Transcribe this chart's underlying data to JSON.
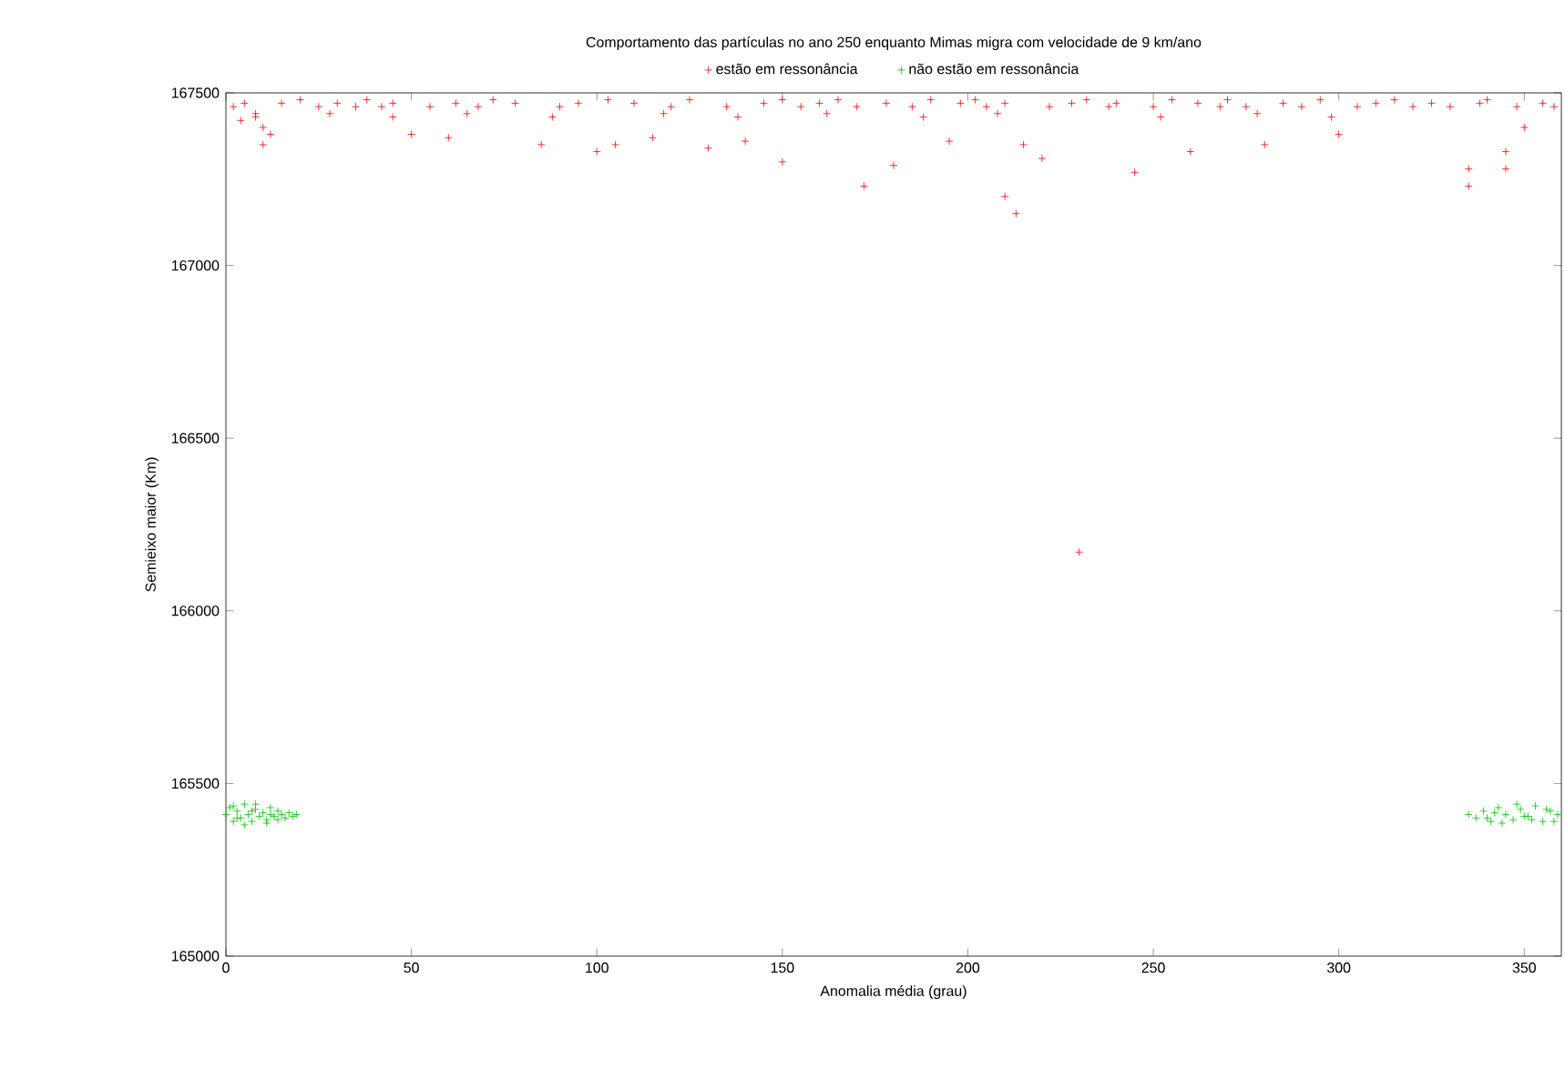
{
  "chart_data": {
    "type": "scatter",
    "title": "Comportamento das partículas no ano 250 enquanto Mimas migra com velocidade de 9 km/ano",
    "xlabel": "Anomalia média (grau)",
    "ylabel": "Semieixo maior (Km)",
    "xlim": [
      0,
      360
    ],
    "ylim": [
      165000,
      167500
    ],
    "xticks": [
      0,
      50,
      100,
      150,
      200,
      250,
      300,
      350
    ],
    "yticks": [
      165000,
      165500,
      166000,
      166500,
      167000,
      167500
    ],
    "marker": "cross",
    "legend": "top",
    "series": [
      {
        "name": "estão em ressonância",
        "color": "#ff0000",
        "x": [
          2,
          4,
          5,
          8,
          10,
          10,
          12,
          15,
          20,
          25,
          30,
          35,
          38,
          42,
          45,
          50,
          55,
          60,
          62,
          68,
          72,
          78,
          85,
          90,
          95,
          100,
          103,
          105,
          110,
          115,
          120,
          125,
          130,
          135,
          140,
          145,
          150,
          150,
          155,
          160,
          165,
          170,
          172,
          178,
          180,
          185,
          190,
          195,
          198,
          202,
          205,
          210,
          210,
          213,
          215,
          220,
          222,
          228,
          230,
          232,
          238,
          240,
          245,
          250,
          255,
          260,
          262,
          268,
          270,
          275,
          280,
          285,
          290,
          295,
          300,
          305,
          310,
          315,
          320,
          325,
          330,
          335,
          335,
          338,
          340,
          345,
          345,
          348,
          350,
          355,
          358,
          8,
          28,
          45,
          65,
          88,
          118,
          138,
          162,
          188,
          208,
          252,
          278,
          298
        ],
        "values": [
          167460,
          167420,
          167470,
          167430,
          167350,
          167400,
          167380,
          167470,
          167480,
          167460,
          167470,
          167460,
          167480,
          167460,
          167470,
          167380,
          167460,
          167370,
          167470,
          167460,
          167480,
          167470,
          167350,
          167460,
          167470,
          167330,
          167480,
          167350,
          167470,
          167370,
          167460,
          167480,
          167340,
          167460,
          167360,
          167470,
          167300,
          167480,
          167460,
          167470,
          167480,
          167460,
          167230,
          167470,
          167290,
          167460,
          167480,
          167360,
          167470,
          167480,
          167460,
          167200,
          167470,
          167150,
          167350,
          167310,
          167460,
          167470,
          166170,
          167480,
          167460,
          167470,
          167270,
          167460,
          167480,
          167330,
          167470,
          167460,
          167480,
          167460,
          167350,
          167470,
          167460,
          167480,
          167380,
          167460,
          167470,
          167480,
          167460,
          167470,
          167460,
          167230,
          167280,
          167470,
          167480,
          167330,
          167280,
          167460,
          167400,
          167470,
          167460,
          167440,
          167440,
          167430,
          167440,
          167430,
          167440,
          167430,
          167440,
          167430,
          167440,
          167430,
          167440,
          167430
        ]
      },
      {
        "name": "não estão em ressonância",
        "color": "#00c000",
        "x": [
          0,
          1,
          2,
          3,
          4,
          5,
          6,
          7,
          8,
          9,
          10,
          11,
          12,
          13,
          14,
          15,
          16,
          17,
          18,
          19,
          2,
          5,
          8,
          11,
          14,
          3,
          7,
          12,
          335,
          337,
          339,
          341,
          343,
          345,
          347,
          349,
          351,
          353,
          355,
          357,
          359,
          340,
          344,
          348,
          352,
          356,
          342,
          350,
          358
        ],
        "values": [
          165410,
          165430,
          165390,
          165420,
          165400,
          165440,
          165410,
          165390,
          165425,
          165405,
          165415,
          165395,
          165430,
          165405,
          165420,
          165410,
          165400,
          165415,
          165405,
          165410,
          165435,
          165380,
          165440,
          165385,
          165395,
          165400,
          165420,
          165410,
          165410,
          165400,
          165420,
          165390,
          165430,
          165410,
          165395,
          165425,
          165405,
          165435,
          165390,
          165420,
          165410,
          165400,
          165385,
          165440,
          165395,
          165425,
          165415,
          165405,
          165390
        ]
      }
    ]
  }
}
